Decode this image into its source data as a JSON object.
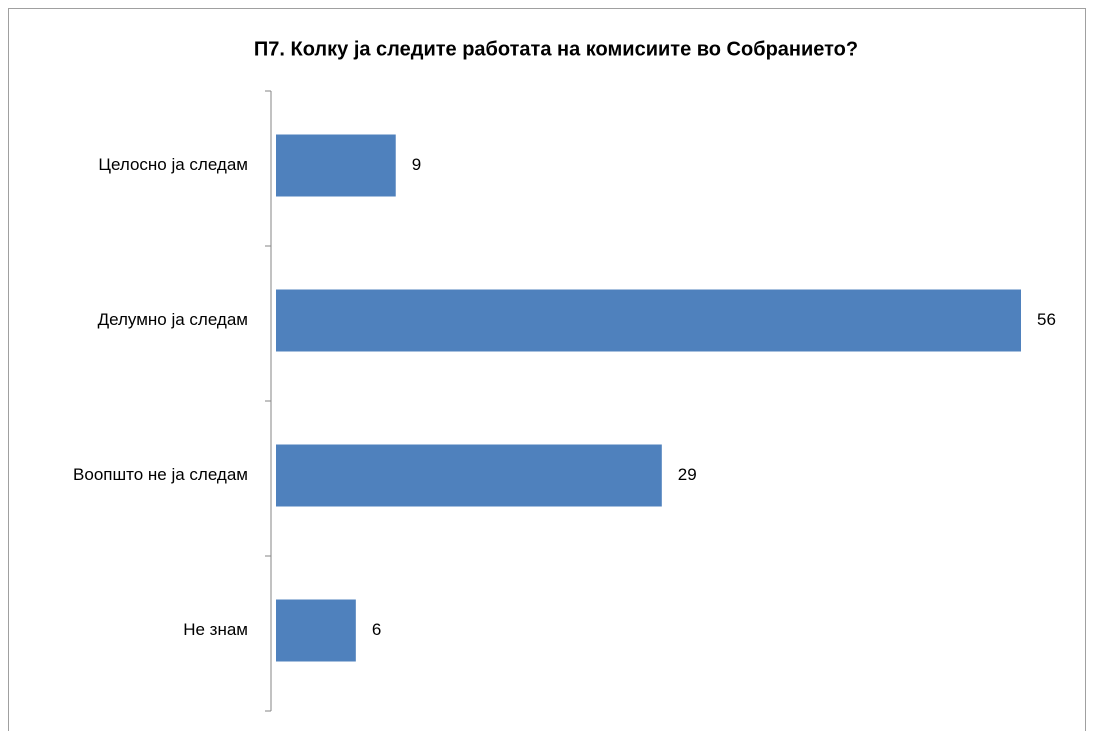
{
  "chart_data": {
    "type": "bar",
    "orientation": "horizontal",
    "title": "П7. Колку ја следите работата на комисиите во Собранието?",
    "categories": [
      "Целосно ја следам",
      "Делумно ја следам",
      "Воопшто не ја следам",
      "Не знам"
    ],
    "values": [
      9,
      56,
      29,
      6
    ],
    "color": "#4f81bd"
  }
}
